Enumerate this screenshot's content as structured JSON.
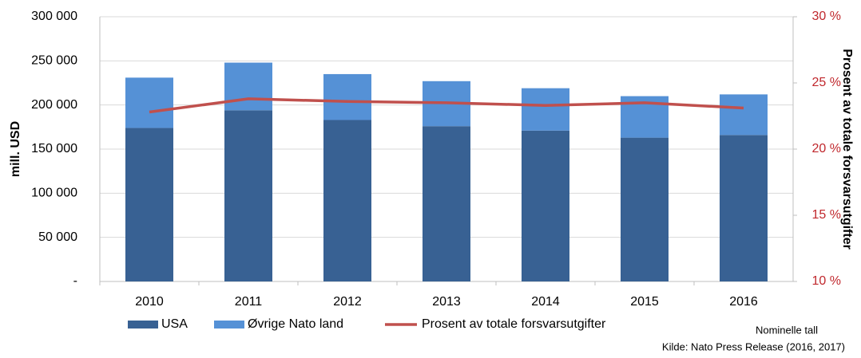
{
  "chart_data": {
    "type": "bar",
    "stacked": true,
    "categories": [
      "2010",
      "2011",
      "2012",
      "2013",
      "2014",
      "2015",
      "2016"
    ],
    "series": [
      {
        "name": "USA",
        "color": "#386193",
        "values": [
          174000,
          194000,
          183000,
          176000,
          171000,
          163000,
          166000
        ]
      },
      {
        "name": "Øvrige Nato land",
        "color": "#5591d6",
        "values": [
          57000,
          54000,
          52000,
          51000,
          48000,
          47000,
          46000
        ]
      },
      {
        "name": "Prosent av totale forsvarsutgifter",
        "color": "#c0504d",
        "type": "line",
        "axis": "y2",
        "values": [
          22.8,
          23.8,
          23.6,
          23.5,
          23.3,
          23.5,
          23.1
        ]
      }
    ],
    "ylabel": "mill. USD",
    "y2label": "Prosent av totale forsvarsutgifter",
    "ylim": [
      0,
      300000
    ],
    "yticks": [
      {
        "value": 0,
        "label": "-"
      },
      {
        "value": 50000,
        "label": "50 000"
      },
      {
        "value": 100000,
        "label": "100 000"
      },
      {
        "value": 150000,
        "label": "150 000"
      },
      {
        "value": 200000,
        "label": "200 000"
      },
      {
        "value": 250000,
        "label": "250 000"
      },
      {
        "value": 300000,
        "label": "300 000"
      }
    ],
    "y2lim": [
      10,
      30
    ],
    "y2ticks": [
      {
        "value": 10,
        "label": "10 %"
      },
      {
        "value": 15,
        "label": "15 %"
      },
      {
        "value": 20,
        "label": "20 %"
      },
      {
        "value": 25,
        "label": "25 %"
      },
      {
        "value": 30,
        "label": "30 %"
      }
    ],
    "grid": true,
    "legend": "bottom",
    "notes": [
      "Nominelle tall",
      "Kilde: Nato Press Release (2016, 2017)"
    ]
  }
}
